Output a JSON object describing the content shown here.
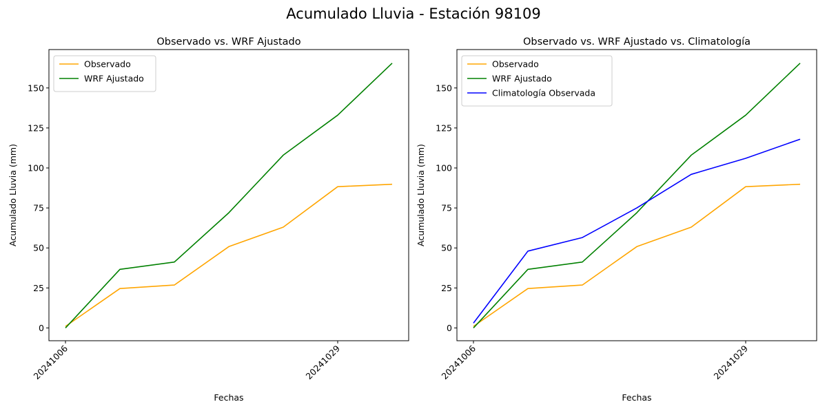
{
  "figure": {
    "suptitle": "Acumulado Lluvia - Estación 98109"
  },
  "colors": {
    "observado": "#ffa500",
    "wrf": "#008000",
    "clima": "#0000ff"
  },
  "chart_data": [
    {
      "type": "line",
      "title": "Observado vs. WRF Ajustado",
      "xlabel": "Fechas",
      "ylabel": "Acumulado Lluvia (mm)",
      "x": [
        "20241006",
        "",
        "",
        "",
        "",
        "20241029",
        ""
      ],
      "x_ticklabels": [
        "20241006",
        "20241029"
      ],
      "y_ticks": [
        0,
        25,
        50,
        75,
        100,
        125,
        150
      ],
      "ylim": [
        -8,
        174
      ],
      "grid": false,
      "legend": "upper-left",
      "series": [
        {
          "name": "Observado",
          "color": "#ffa500",
          "values": [
            1.0,
            24.6,
            26.8,
            50.8,
            63.0,
            88.3,
            89.8
          ]
        },
        {
          "name": "WRF Ajustado",
          "color": "#008000",
          "values": [
            0.0,
            36.6,
            41.2,
            72.0,
            108.0,
            133.0,
            165.5
          ]
        }
      ]
    },
    {
      "type": "line",
      "title": "Observado vs. WRF Ajustado vs. Climatología",
      "xlabel": "Fechas",
      "ylabel": "Acumulado Lluvia (mm)",
      "x": [
        "20241006",
        "",
        "",
        "",
        "",
        "20241029",
        ""
      ],
      "x_ticklabels": [
        "20241006",
        "20241029"
      ],
      "y_ticks": [
        0,
        25,
        50,
        75,
        100,
        125,
        150
      ],
      "ylim": [
        -8,
        174
      ],
      "grid": false,
      "legend": "upper-left",
      "series": [
        {
          "name": "Observado",
          "color": "#ffa500",
          "values": [
            1.0,
            24.6,
            26.8,
            50.8,
            63.0,
            88.3,
            89.8
          ]
        },
        {
          "name": "WRF Ajustado",
          "color": "#008000",
          "values": [
            0.0,
            36.6,
            41.2,
            72.0,
            108.0,
            133.0,
            165.5
          ]
        },
        {
          "name": "Climatología Observada",
          "color": "#0000ff",
          "values": [
            3.0,
            48.0,
            56.5,
            75.0,
            96.0,
            106.0,
            118.0
          ]
        }
      ]
    }
  ]
}
